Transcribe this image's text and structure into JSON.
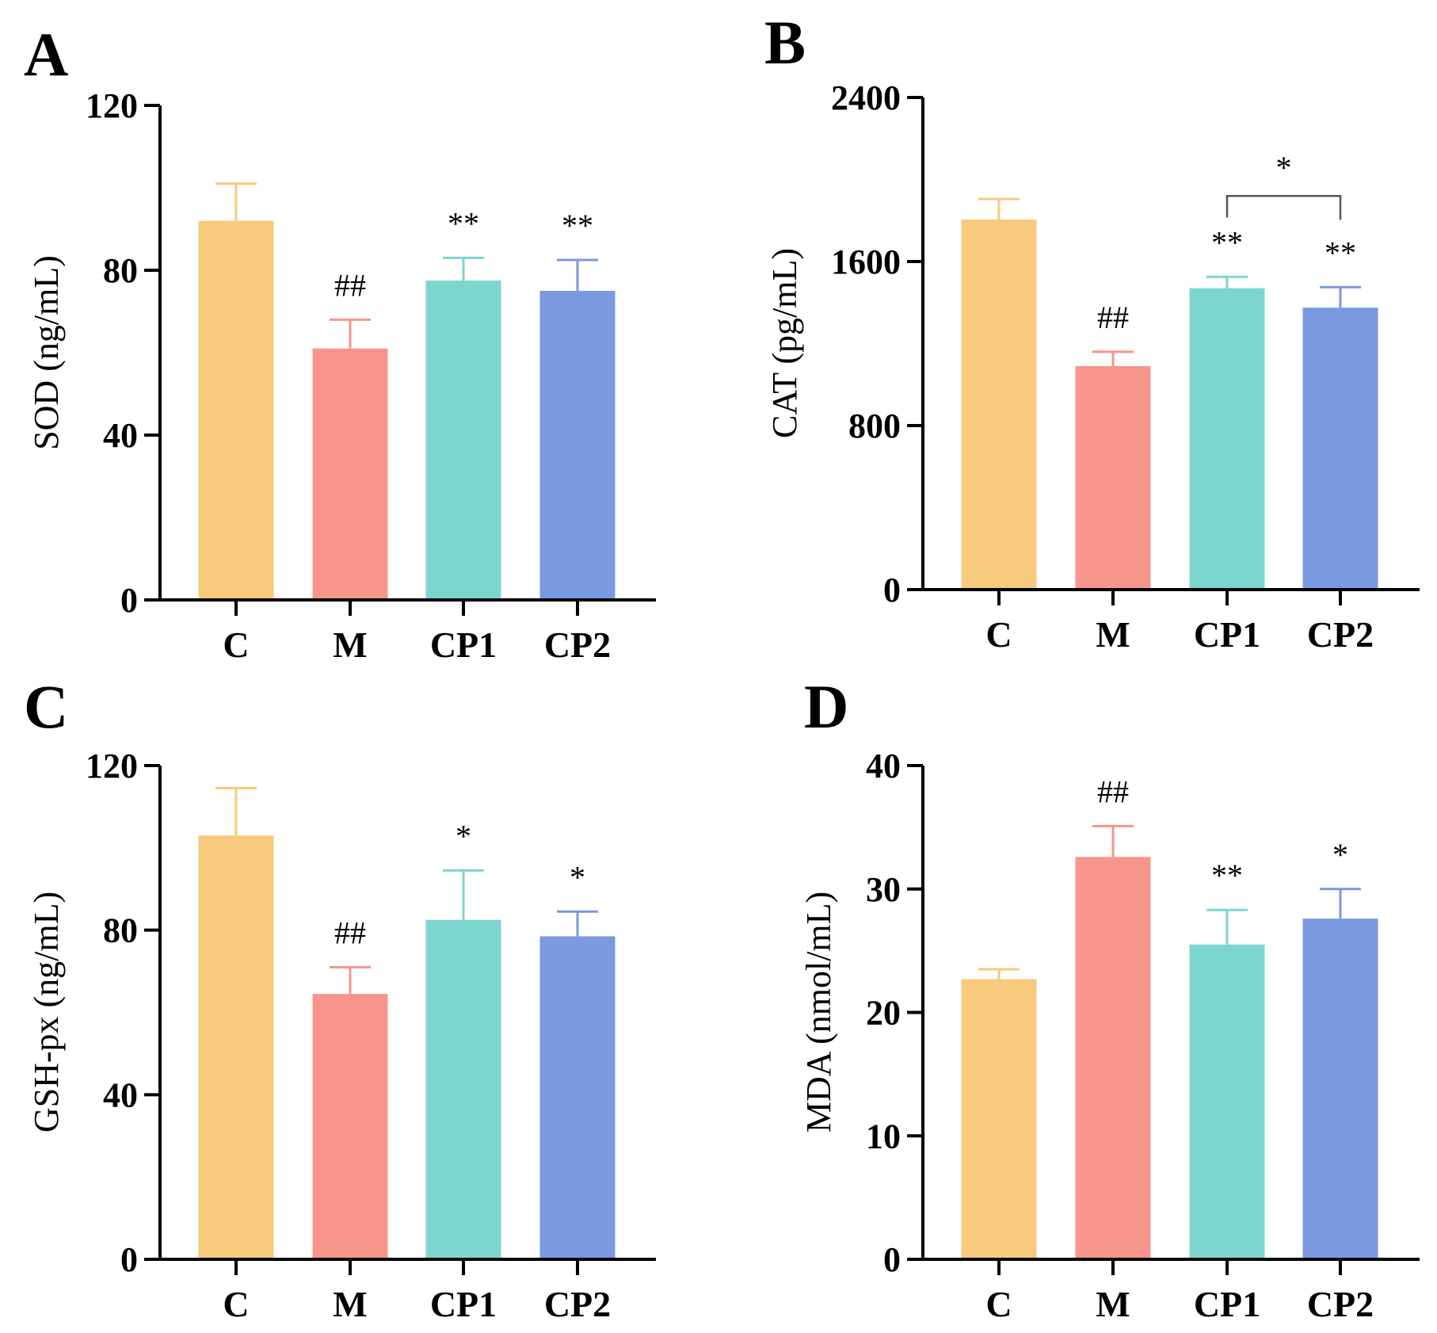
{
  "colors": {
    "C": "#f7ca7e",
    "M": "#f7958a",
    "CP1": "#7dd6ce",
    "CP2": "#7b99e0",
    "axis": "#000000",
    "bracket": "#555555"
  },
  "chart_data": [
    {
      "panel": "A",
      "type": "bar",
      "categories": [
        "C",
        "M",
        "CP1",
        "CP2"
      ],
      "values": [
        92,
        61,
        77.5,
        75
      ],
      "errors": [
        9,
        7,
        5.5,
        7.5
      ],
      "ylabel": "SOD (ng/mL)",
      "ylim": [
        0,
        120
      ],
      "yticks": [
        "0",
        "40",
        "80",
        "120"
      ],
      "annotations": [
        "",
        "##",
        "**",
        "**"
      ]
    },
    {
      "panel": "B",
      "type": "bar",
      "categories": [
        "C",
        "M",
        "CP1",
        "CP2"
      ],
      "values": [
        1805,
        1090,
        1470,
        1375
      ],
      "errors": [
        100,
        70,
        55,
        100
      ],
      "ylabel": "CAT (pg/mL)",
      "ylim": [
        0,
        2400
      ],
      "yticks": [
        "0",
        "800",
        "1600",
        "2400"
      ],
      "annotations": [
        "",
        "##",
        "**",
        "**"
      ],
      "bracket": {
        "from": "CP1",
        "to": "CP2",
        "label": "*",
        "level": 1920
      }
    },
    {
      "panel": "C",
      "type": "bar",
      "categories": [
        "C",
        "M",
        "CP1",
        "CP2"
      ],
      "values": [
        103,
        64.5,
        82.5,
        78.5
      ],
      "errors": [
        11.5,
        6.5,
        12,
        6
      ],
      "ylabel": "GSH-px (ng/mL)",
      "ylim": [
        0,
        120
      ],
      "yticks": [
        "0",
        "40",
        "80",
        "120"
      ],
      "annotations": [
        "",
        "##",
        "*",
        "*"
      ]
    },
    {
      "panel": "D",
      "type": "bar",
      "categories": [
        "C",
        "M",
        "CP1",
        "CP2"
      ],
      "values": [
        22.7,
        32.6,
        25.5,
        27.6
      ],
      "errors": [
        0.8,
        2.5,
        2.8,
        2.4
      ],
      "ylabel": "MDA (nmol/mL)",
      "ylim": [
        0,
        40
      ],
      "yticks": [
        "0",
        "10",
        "20",
        "30",
        "40"
      ],
      "annotations": [
        "",
        "##",
        "**",
        "*"
      ]
    }
  ]
}
